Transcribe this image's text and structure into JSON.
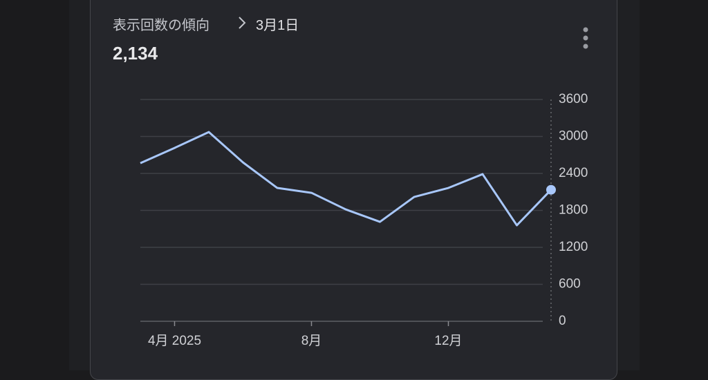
{
  "header": {
    "title": "表示回数の傾向",
    "date": "3月1日",
    "value": "2,134"
  },
  "chart_data": {
    "type": "line",
    "categories": [
      null,
      "4月 2025",
      null,
      null,
      null,
      "8月",
      null,
      null,
      null,
      "12月",
      null,
      null,
      null
    ],
    "values": [
      2567,
      2814,
      3072,
      2578,
      2164,
      2085,
      1816,
      1614,
      2018,
      2164,
      2388,
      1558,
      2134
    ],
    "color": "#a8c7fa",
    "ylim": [
      0,
      3600
    ],
    "yticks": [
      0,
      600,
      1200,
      1800,
      2400,
      3000,
      3600
    ],
    "grid": true
  }
}
